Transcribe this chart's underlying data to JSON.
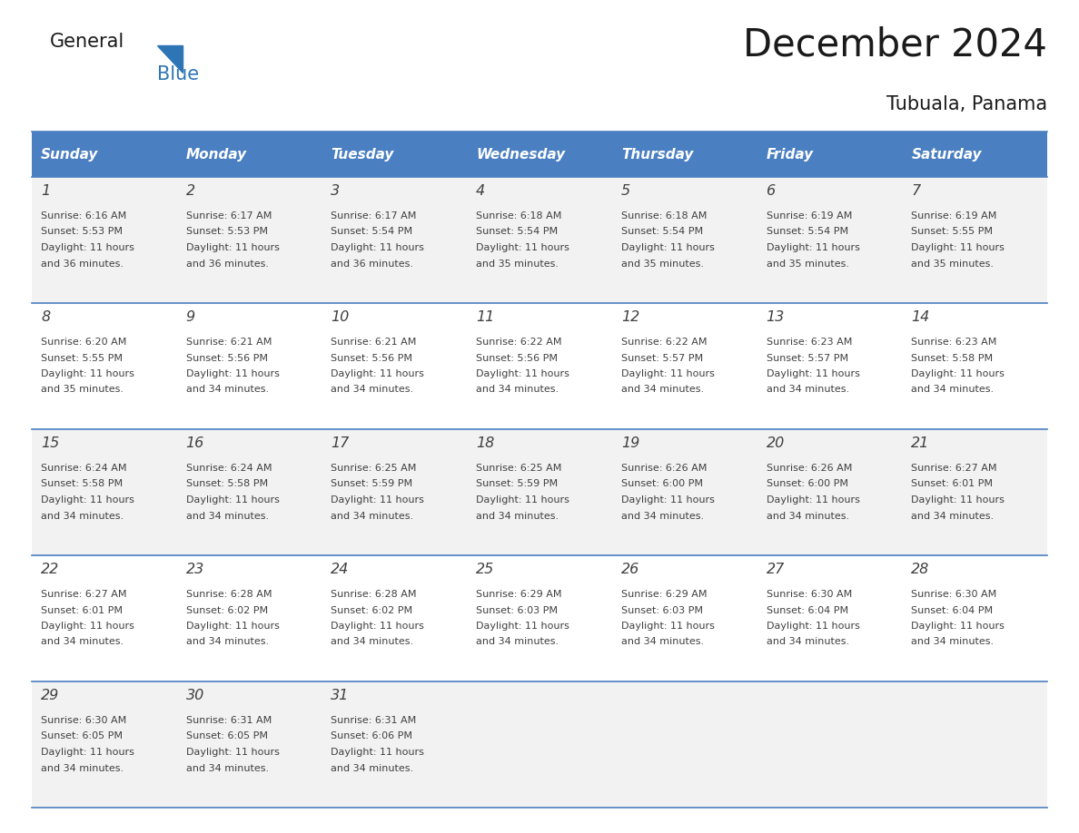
{
  "title": "December 2024",
  "subtitle": "Tubuala, Panama",
  "header_bg_color": "#4a7fc1",
  "header_text_color": "#FFFFFF",
  "header_days": [
    "Sunday",
    "Monday",
    "Tuesday",
    "Wednesday",
    "Thursday",
    "Friday",
    "Saturday"
  ],
  "row_bg_colors": [
    "#F2F2F2",
    "#FFFFFF"
  ],
  "cell_border_color": "#4a7fc1",
  "day_number_color": "#404040",
  "cell_text_color": "#404040",
  "title_color": "#1a1a1a",
  "logo_general_color": "#1a1a1a",
  "logo_blue_color": "#2E75B6",
  "calendar": [
    [
      {
        "day": 1,
        "sunrise": "6:16 AM",
        "sunset": "5:53 PM",
        "daylight": "11 hours and 36 minutes."
      },
      {
        "day": 2,
        "sunrise": "6:17 AM",
        "sunset": "5:53 PM",
        "daylight": "11 hours and 36 minutes."
      },
      {
        "day": 3,
        "sunrise": "6:17 AM",
        "sunset": "5:54 PM",
        "daylight": "11 hours and 36 minutes."
      },
      {
        "day": 4,
        "sunrise": "6:18 AM",
        "sunset": "5:54 PM",
        "daylight": "11 hours and 35 minutes."
      },
      {
        "day": 5,
        "sunrise": "6:18 AM",
        "sunset": "5:54 PM",
        "daylight": "11 hours and 35 minutes."
      },
      {
        "day": 6,
        "sunrise": "6:19 AM",
        "sunset": "5:54 PM",
        "daylight": "11 hours and 35 minutes."
      },
      {
        "day": 7,
        "sunrise": "6:19 AM",
        "sunset": "5:55 PM",
        "daylight": "11 hours and 35 minutes."
      }
    ],
    [
      {
        "day": 8,
        "sunrise": "6:20 AM",
        "sunset": "5:55 PM",
        "daylight": "11 hours and 35 minutes."
      },
      {
        "day": 9,
        "sunrise": "6:21 AM",
        "sunset": "5:56 PM",
        "daylight": "11 hours and 34 minutes."
      },
      {
        "day": 10,
        "sunrise": "6:21 AM",
        "sunset": "5:56 PM",
        "daylight": "11 hours and 34 minutes."
      },
      {
        "day": 11,
        "sunrise": "6:22 AM",
        "sunset": "5:56 PM",
        "daylight": "11 hours and 34 minutes."
      },
      {
        "day": 12,
        "sunrise": "6:22 AM",
        "sunset": "5:57 PM",
        "daylight": "11 hours and 34 minutes."
      },
      {
        "day": 13,
        "sunrise": "6:23 AM",
        "sunset": "5:57 PM",
        "daylight": "11 hours and 34 minutes."
      },
      {
        "day": 14,
        "sunrise": "6:23 AM",
        "sunset": "5:58 PM",
        "daylight": "11 hours and 34 minutes."
      }
    ],
    [
      {
        "day": 15,
        "sunrise": "6:24 AM",
        "sunset": "5:58 PM",
        "daylight": "11 hours and 34 minutes."
      },
      {
        "day": 16,
        "sunrise": "6:24 AM",
        "sunset": "5:58 PM",
        "daylight": "11 hours and 34 minutes."
      },
      {
        "day": 17,
        "sunrise": "6:25 AM",
        "sunset": "5:59 PM",
        "daylight": "11 hours and 34 minutes."
      },
      {
        "day": 18,
        "sunrise": "6:25 AM",
        "sunset": "5:59 PM",
        "daylight": "11 hours and 34 minutes."
      },
      {
        "day": 19,
        "sunrise": "6:26 AM",
        "sunset": "6:00 PM",
        "daylight": "11 hours and 34 minutes."
      },
      {
        "day": 20,
        "sunrise": "6:26 AM",
        "sunset": "6:00 PM",
        "daylight": "11 hours and 34 minutes."
      },
      {
        "day": 21,
        "sunrise": "6:27 AM",
        "sunset": "6:01 PM",
        "daylight": "11 hours and 34 minutes."
      }
    ],
    [
      {
        "day": 22,
        "sunrise": "6:27 AM",
        "sunset": "6:01 PM",
        "daylight": "11 hours and 34 minutes."
      },
      {
        "day": 23,
        "sunrise": "6:28 AM",
        "sunset": "6:02 PM",
        "daylight": "11 hours and 34 minutes."
      },
      {
        "day": 24,
        "sunrise": "6:28 AM",
        "sunset": "6:02 PM",
        "daylight": "11 hours and 34 minutes."
      },
      {
        "day": 25,
        "sunrise": "6:29 AM",
        "sunset": "6:03 PM",
        "daylight": "11 hours and 34 minutes."
      },
      {
        "day": 26,
        "sunrise": "6:29 AM",
        "sunset": "6:03 PM",
        "daylight": "11 hours and 34 minutes."
      },
      {
        "day": 27,
        "sunrise": "6:30 AM",
        "sunset": "6:04 PM",
        "daylight": "11 hours and 34 minutes."
      },
      {
        "day": 28,
        "sunrise": "6:30 AM",
        "sunset": "6:04 PM",
        "daylight": "11 hours and 34 minutes."
      }
    ],
    [
      {
        "day": 29,
        "sunrise": "6:30 AM",
        "sunset": "6:05 PM",
        "daylight": "11 hours and 34 minutes."
      },
      {
        "day": 30,
        "sunrise": "6:31 AM",
        "sunset": "6:05 PM",
        "daylight": "11 hours and 34 minutes."
      },
      {
        "day": 31,
        "sunrise": "6:31 AM",
        "sunset": "6:06 PM",
        "daylight": "11 hours and 34 minutes."
      },
      null,
      null,
      null,
      null
    ]
  ]
}
